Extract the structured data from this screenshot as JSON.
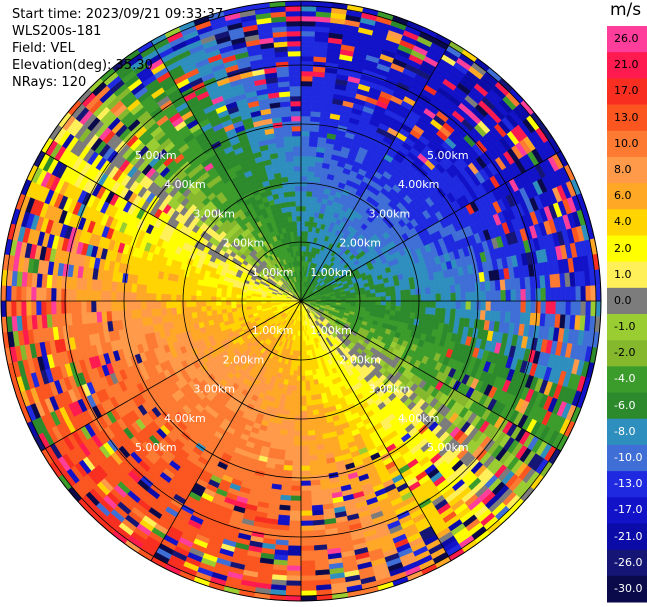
{
  "header": {
    "start_time": "Start time: 2023/09/21 09:33:37",
    "instrument": "WLS200s-181",
    "field": "Field: VEL",
    "elevation": "Elevation(deg): 35.30",
    "nrays": "NRays: 120"
  },
  "ppi": {
    "range_rings": [
      "1.00km",
      "2.00km",
      "3.00km",
      "4.00km",
      "5.00km"
    ],
    "spoke_count": 12
  },
  "colorbar": {
    "unit": "m/s",
    "levels": [
      {
        "label": "26.0",
        "color": "#ff3d9a"
      },
      {
        "label": "21.0",
        "color": "#ff1a4f"
      },
      {
        "label": "17.0",
        "color": "#f82f20"
      },
      {
        "label": "13.0",
        "color": "#fb5520"
      },
      {
        "label": "10.0",
        "color": "#fd7a33"
      },
      {
        "label": "8.0",
        "color": "#ff9a4a"
      },
      {
        "label": "6.0",
        "color": "#ffa826"
      },
      {
        "label": "4.0",
        "color": "#ffd400"
      },
      {
        "label": "2.0",
        "color": "#ffff00"
      },
      {
        "label": "1.0",
        "color": "#fff05a"
      },
      {
        "label": "0.0",
        "color": "#7c7c7c"
      },
      {
        "label": "-1.0",
        "color": "#9acd32"
      },
      {
        "label": "-2.0",
        "color": "#86b82e"
      },
      {
        "label": "-4.0",
        "color": "#3b9b2b"
      },
      {
        "label": "-6.0",
        "color": "#2c8a2c"
      },
      {
        "label": "-8.0",
        "color": "#2e8fbf"
      },
      {
        "label": "-10.0",
        "color": "#3f6fd6"
      },
      {
        "label": "-13.0",
        "color": "#1f2ae0"
      },
      {
        "label": "-17.0",
        "color": "#1212c8"
      },
      {
        "label": "-21.0",
        "color": "#0b0ba8"
      },
      {
        "label": "-26.0",
        "color": "#151575"
      },
      {
        "label": "-30.0",
        "color": "#0a0a4a"
      }
    ]
  }
}
